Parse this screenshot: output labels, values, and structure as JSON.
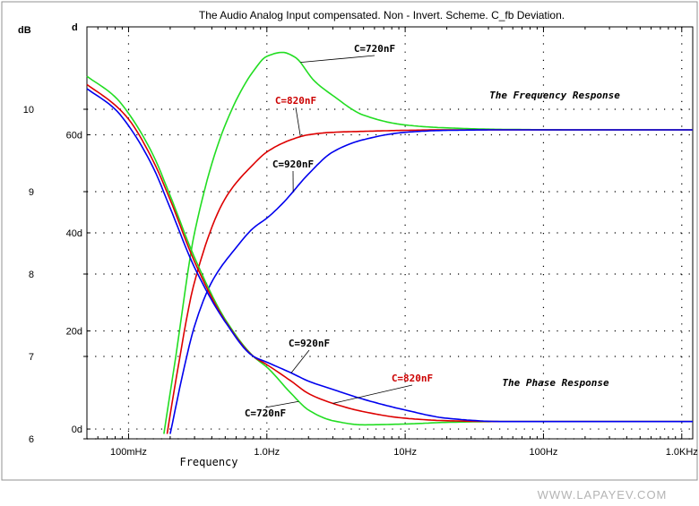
{
  "watermark": "WWW.LAPAYEV.COM",
  "chart_data": {
    "type": "line",
    "title": "The Audio Analog Input compensated. Non - Invert. Scheme. C_fb Deviation.",
    "xlabel": "Frequency",
    "x_scale": "log",
    "xlim_hz": [
      0.05,
      1200
    ],
    "x_ticks": [
      {
        "value": 0.1,
        "label": "100mHz"
      },
      {
        "value": 1,
        "label": "1.0Hz"
      },
      {
        "value": 10,
        "label": "10Hz"
      },
      {
        "value": 100,
        "label": "100Hz"
      },
      {
        "value": 1000,
        "label": "1.0KHz"
      }
    ],
    "left_axis": {
      "unit": "dB",
      "range": [
        6,
        11
      ],
      "ticks": [
        {
          "value": 6,
          "label": "6"
        },
        {
          "value": 7,
          "label": "7"
        },
        {
          "value": 8,
          "label": "8"
        },
        {
          "value": 9,
          "label": "9"
        },
        {
          "value": 10,
          "label": "10"
        }
      ]
    },
    "right_axis": {
      "unit": "d",
      "range": [
        -2,
        82
      ],
      "ticks": [
        {
          "value": 0,
          "label": "0d"
        },
        {
          "value": 20,
          "label": "20d"
        },
        {
          "value": 40,
          "label": "40d"
        },
        {
          "value": 60,
          "label": "60d"
        }
      ]
    },
    "grid": true,
    "annotations": {
      "frequency_response": "The Frequency Response",
      "phase_response": "The Phase Response"
    },
    "series": [
      {
        "name": "C=720nF",
        "group": "frequency",
        "axis": "right",
        "color": "#22dd22",
        "x": [
          0.18,
          0.22,
          0.3,
          0.5,
          0.8,
          1.0,
          1.3,
          1.6,
          2.2,
          3.0,
          5.0,
          10,
          20,
          50,
          200,
          1200
        ],
        "y": [
          -1,
          15,
          40,
          62,
          73,
          76,
          76.8,
          75.8,
          71,
          68,
          64,
          62,
          61.4,
          61.1,
          61,
          61
        ]
      },
      {
        "name": "C=820nF",
        "group": "frequency",
        "axis": "right",
        "color": "#dd0000",
        "x": [
          0.19,
          0.22,
          0.3,
          0.5,
          0.8,
          1.0,
          1.5,
          2.0,
          3.0,
          5.0,
          10,
          20,
          50,
          200,
          1200
        ],
        "y": [
          -1,
          10,
          30,
          47,
          54,
          56.5,
          59,
          60,
          60.5,
          60.7,
          60.9,
          61,
          61,
          61,
          61
        ]
      },
      {
        "name": "C=920nF",
        "group": "frequency",
        "axis": "right",
        "color": "#0000ee",
        "x": [
          0.2,
          0.25,
          0.3,
          0.4,
          0.6,
          0.8,
          1.0,
          1.3,
          2.0,
          3.0,
          5.0,
          10,
          20,
          50,
          200,
          1200
        ],
        "y": [
          -1,
          12,
          21,
          30,
          37,
          41,
          43,
          46,
          52,
          56.5,
          59,
          60.5,
          60.9,
          61,
          61,
          61
        ]
      },
      {
        "name": "C=720nF",
        "group": "phase",
        "axis": "left",
        "color": "#22dd22",
        "x": [
          0.05,
          0.08,
          0.1,
          0.15,
          0.2,
          0.3,
          0.5,
          0.8,
          1.0,
          1.5,
          2.0,
          3.0,
          5.0,
          10,
          20,
          50,
          200,
          1200
        ],
        "y": [
          10.4,
          10.15,
          9.95,
          9.45,
          8.95,
          8.2,
          7.45,
          7.0,
          6.87,
          6.55,
          6.35,
          6.22,
          6.17,
          6.18,
          6.2,
          6.21,
          6.21,
          6.21
        ]
      },
      {
        "name": "C=820nF",
        "group": "phase",
        "axis": "left",
        "color": "#dd0000",
        "x": [
          0.05,
          0.08,
          0.1,
          0.15,
          0.2,
          0.3,
          0.5,
          0.8,
          1.0,
          1.5,
          2.0,
          3.0,
          5.0,
          10,
          20,
          50,
          200,
          1200
        ],
        "y": [
          10.3,
          10.05,
          9.88,
          9.38,
          8.9,
          8.15,
          7.43,
          7.0,
          6.9,
          6.7,
          6.55,
          6.43,
          6.33,
          6.25,
          6.22,
          6.21,
          6.21,
          6.21
        ]
      },
      {
        "name": "C=920nF",
        "group": "phase",
        "axis": "left",
        "color": "#0000ee",
        "x": [
          0.05,
          0.08,
          0.1,
          0.15,
          0.2,
          0.3,
          0.5,
          0.8,
          1.0,
          1.5,
          2.0,
          3.0,
          5.0,
          10,
          20,
          50,
          200,
          1200
        ],
        "y": [
          10.25,
          10.0,
          9.8,
          9.3,
          8.8,
          8.08,
          7.42,
          7.0,
          6.93,
          6.8,
          6.7,
          6.6,
          6.48,
          6.35,
          6.25,
          6.21,
          6.21,
          6.21
        ]
      }
    ],
    "labels": [
      {
        "series": 0,
        "text": "C=720nF",
        "color": "#000000"
      },
      {
        "series": 1,
        "text": "C=820nF",
        "color": "#cc0000"
      },
      {
        "series": 2,
        "text": "C=920nF",
        "color": "#000000"
      },
      {
        "series": 3,
        "text": "C=720nF",
        "color": "#000000"
      },
      {
        "series": 4,
        "text": "C=820nF",
        "color": "#cc0000"
      },
      {
        "series": 5,
        "text": "C=920nF",
        "color": "#000000"
      }
    ]
  }
}
